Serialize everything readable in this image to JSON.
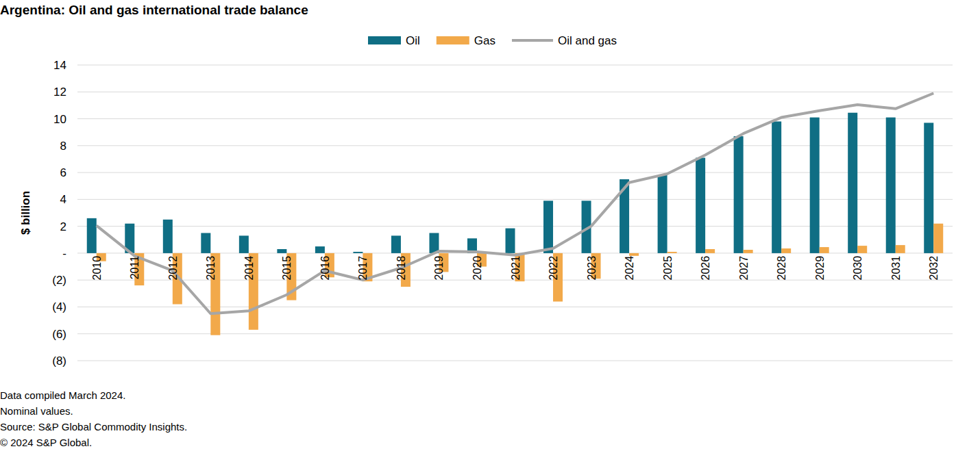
{
  "chart_data": {
    "type": "bar",
    "title": "Argentina: Oil and gas international trade balance",
    "y_label": "$ billion",
    "notes": [
      "Data compiled March 2024.",
      "Nominal values.",
      "Source: S&P Global Commodity Insights.",
      "© 2024 S&P Global."
    ],
    "categories": [
      "2010",
      "2011",
      "2012",
      "2013",
      "2014",
      "2015",
      "2016",
      "2017",
      "2018",
      "2019",
      "2020",
      "2021",
      "2022",
      "2023",
      "2024",
      "2025",
      "2026",
      "2027",
      "2028",
      "2029",
      "2030",
      "2031",
      "2032"
    ],
    "series": [
      {
        "name": "Oil",
        "type": "bar",
        "color": "#0f6e84",
        "values": [
          2.6,
          2.2,
          2.5,
          1.5,
          1.3,
          0.3,
          0.5,
          0.1,
          1.3,
          1.5,
          1.1,
          1.85,
          3.9,
          3.9,
          5.5,
          5.8,
          7.1,
          8.7,
          9.8,
          10.1,
          10.45,
          10.1,
          9.7
        ]
      },
      {
        "name": "Gas",
        "type": "bar",
        "color": "#f2a94a",
        "values": [
          -0.6,
          -2.4,
          -3.8,
          -6.1,
          -5.7,
          -3.5,
          -1.8,
          -2.1,
          -2.5,
          -1.4,
          -1.0,
          -2.1,
          -3.6,
          -1.9,
          -0.2,
          0.1,
          0.3,
          0.25,
          0.35,
          0.45,
          0.55,
          0.6,
          2.2
        ]
      },
      {
        "name": "Oil and gas",
        "type": "line",
        "color": "#a6a6a6",
        "values": [
          2.05,
          -0.2,
          -1.3,
          -4.5,
          -4.3,
          -3.1,
          -1.3,
          -2.0,
          -1.1,
          0.15,
          0.1,
          -0.15,
          0.35,
          2.0,
          5.25,
          5.9,
          7.3,
          8.9,
          10.1,
          10.6,
          11.05,
          10.75,
          11.9
        ]
      }
    ],
    "ylim": [
      -8,
      14
    ],
    "yticks": [
      {
        "value": -8,
        "label": "(8)"
      },
      {
        "value": -6,
        "label": "(6)"
      },
      {
        "value": -4,
        "label": "(4)"
      },
      {
        "value": -2,
        "label": "(2)"
      },
      {
        "value": 0,
        "label": "-"
      },
      2,
      4,
      6,
      8,
      10,
      12,
      14
    ],
    "grid": true,
    "legend": "top"
  }
}
